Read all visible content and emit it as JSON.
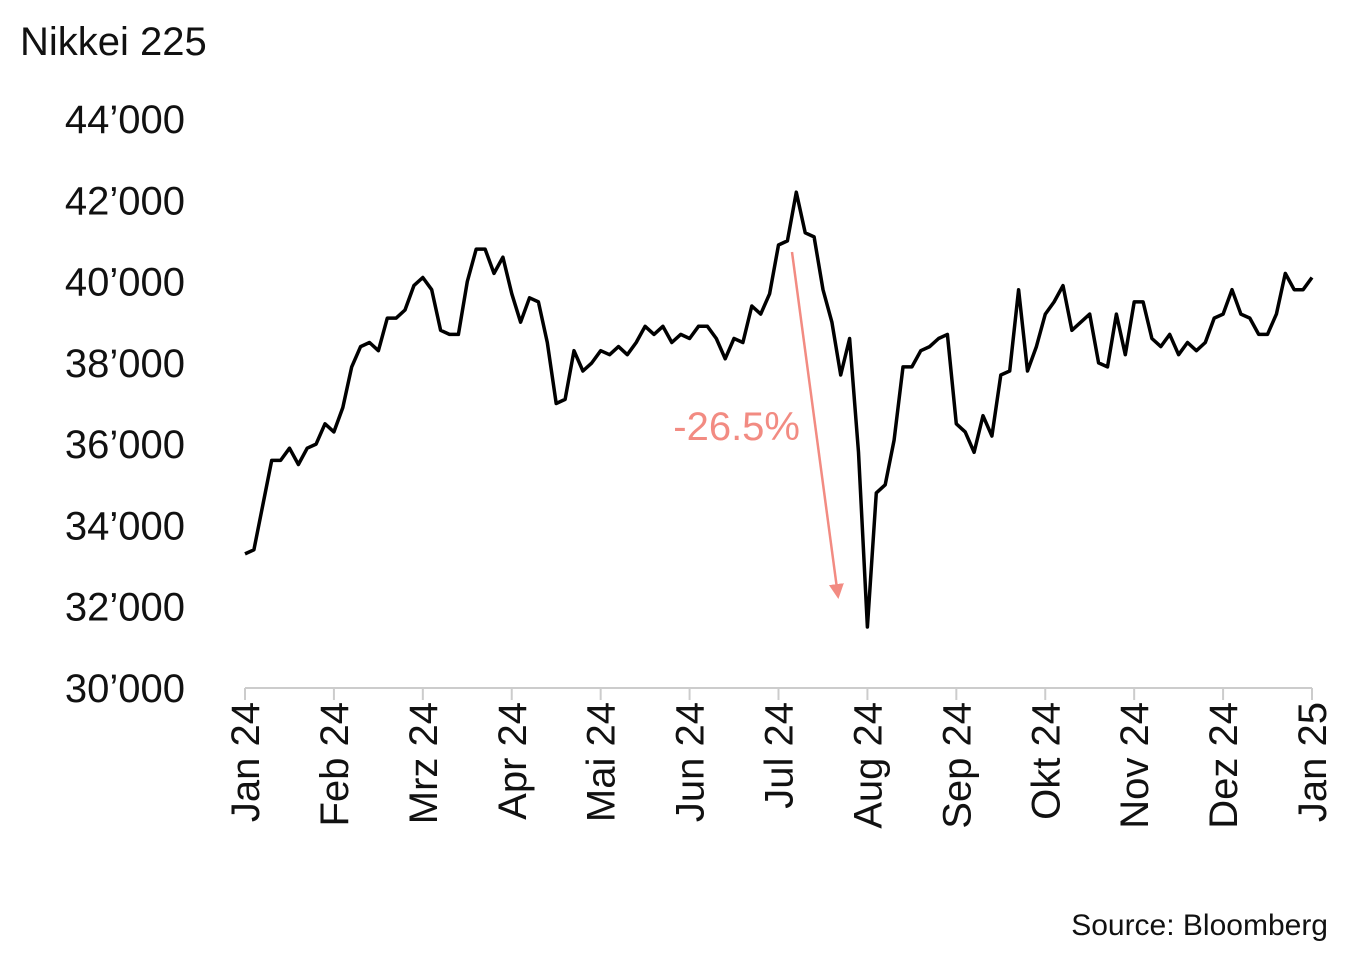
{
  "chart_data": {
    "type": "line",
    "title": "Nikkei 225",
    "source": "Source: Bloomberg",
    "annotation": "-26.5%",
    "categories": [
      "Jan 24",
      null,
      null,
      null,
      null,
      null,
      null,
      null,
      null,
      null,
      "Feb 24",
      null,
      null,
      null,
      null,
      null,
      null,
      null,
      null,
      null,
      "Mrz 24",
      null,
      null,
      null,
      null,
      null,
      null,
      null,
      null,
      null,
      "Apr 24",
      null,
      null,
      null,
      null,
      null,
      null,
      null,
      null,
      null,
      "Mai 24",
      null,
      null,
      null,
      null,
      null,
      null,
      null,
      null,
      null,
      "Jun 24",
      null,
      null,
      null,
      null,
      null,
      null,
      null,
      null,
      null,
      "Jul 24",
      null,
      null,
      null,
      null,
      null,
      null,
      null,
      null,
      null,
      "Aug 24",
      null,
      null,
      null,
      null,
      null,
      null,
      null,
      null,
      null,
      "Sep 24",
      null,
      null,
      null,
      null,
      null,
      null,
      null,
      null,
      null,
      "Okt 24",
      null,
      null,
      null,
      null,
      null,
      null,
      null,
      null,
      null,
      "Nov 24",
      null,
      null,
      null,
      null,
      null,
      null,
      null,
      null,
      null,
      "Dez 24",
      null,
      null,
      null,
      null,
      null,
      null,
      null,
      null,
      null,
      "Jan 25"
    ],
    "series": [
      {
        "name": "Nikkei 225",
        "color": "#000000",
        "values": [
          33300,
          33400,
          34500,
          35600,
          35600,
          35900,
          35500,
          35900,
          36000,
          36500,
          36300,
          36900,
          37900,
          38400,
          38500,
          38300,
          39100,
          39100,
          39300,
          39900,
          40100,
          39800,
          38800,
          38700,
          38700,
          40000,
          40800,
          40800,
          40200,
          40600,
          39700,
          39000,
          39600,
          39500,
          38500,
          37000,
          37100,
          38300,
          37800,
          38000,
          38300,
          38200,
          38400,
          38200,
          38500,
          38900,
          38700,
          38900,
          38500,
          38700,
          38600,
          38900,
          38900,
          38600,
          38100,
          38600,
          38500,
          39400,
          39200,
          39700,
          40900,
          41000,
          42200,
          41200,
          41100,
          39800,
          39000,
          37700,
          38600,
          35800,
          31500,
          34800,
          35000,
          36100,
          37900,
          37900,
          38300,
          38400,
          38600,
          38700,
          36500,
          36300,
          35800,
          36700,
          36200,
          37700,
          37800,
          39800,
          37800,
          38400,
          39200,
          39500,
          39900,
          38800,
          39000,
          39200,
          38000,
          37900,
          39200,
          38200,
          39500,
          39500,
          38600,
          38400,
          38700,
          38200,
          38500,
          38300,
          38500,
          39100,
          39200,
          39800,
          39200,
          39100,
          38700,
          38700,
          39200,
          40200,
          39800,
          39800,
          40100
        ]
      }
    ],
    "ylim": [
      30000,
      44000
    ],
    "yticks": [
      {
        "value": 30000,
        "label": "30’000"
      },
      {
        "value": 32000,
        "label": "32’000"
      },
      {
        "value": 34000,
        "label": "34’000"
      },
      {
        "value": 36000,
        "label": "36’000"
      },
      {
        "value": 38000,
        "label": "38’000"
      },
      {
        "value": 40000,
        "label": "40’000"
      },
      {
        "value": 42000,
        "label": "42’000"
      },
      {
        "value": 44000,
        "label": "44’000"
      }
    ]
  }
}
